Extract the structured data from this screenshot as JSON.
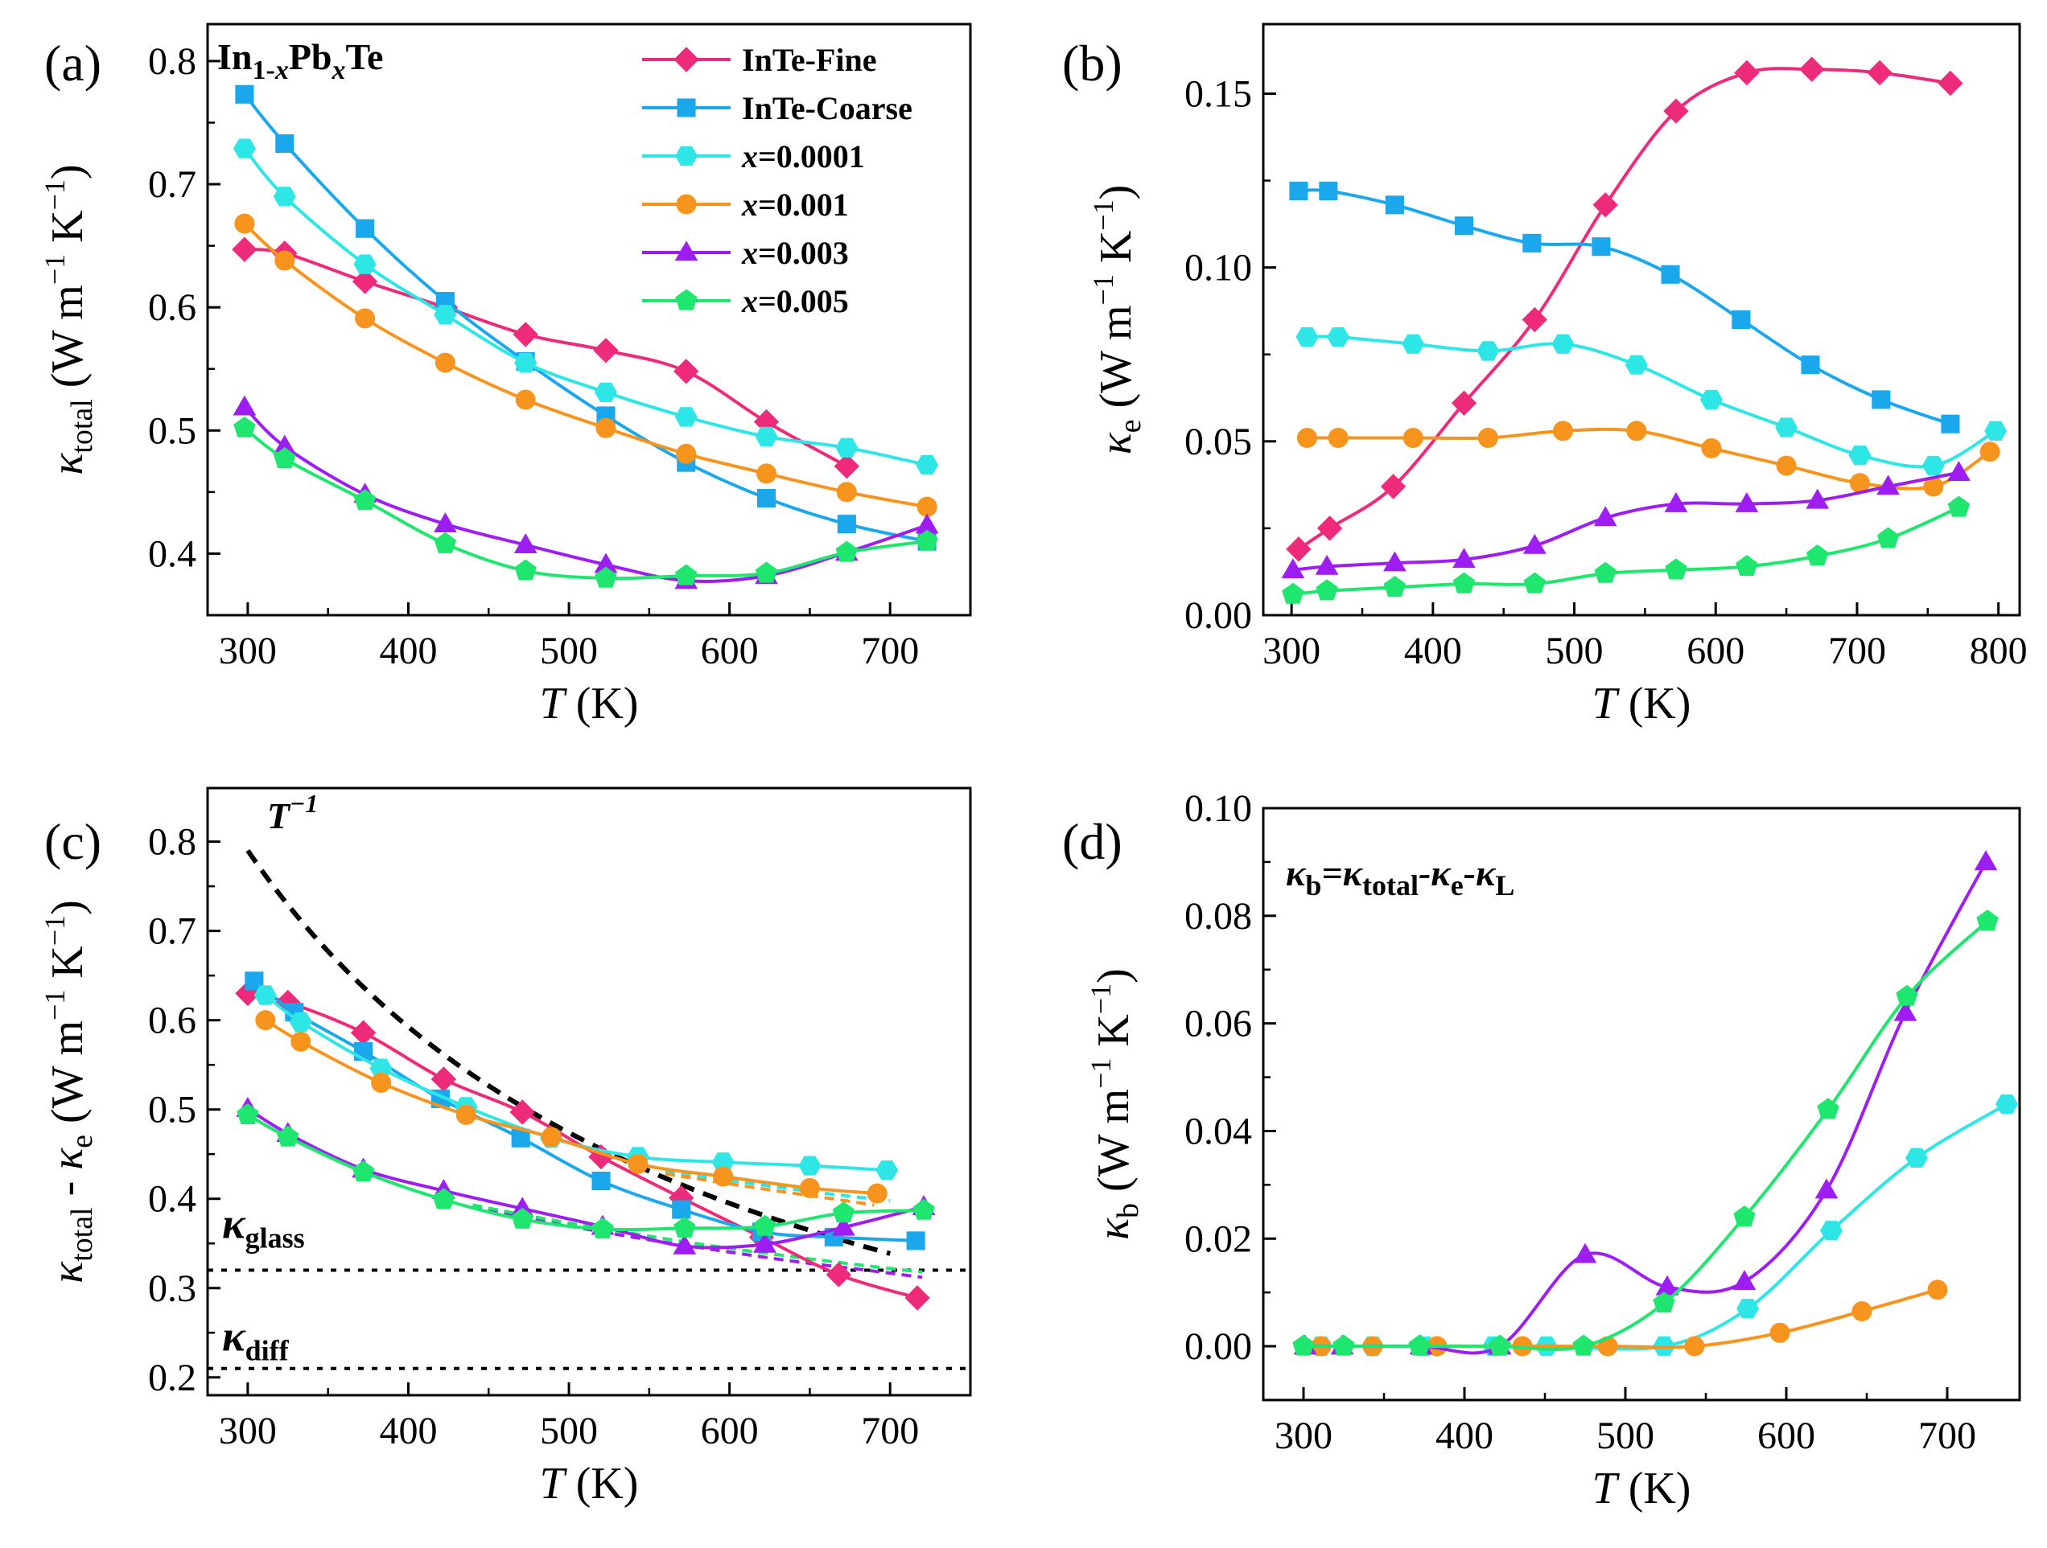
{
  "colors": {
    "InTe-Fine": "#ee2a7b",
    "InTe-Coarse": "#1aa7ec",
    "x=0.0001": "#2ee6e6",
    "x=0.001": "#f7941d",
    "x=0.003": "#9d1df2",
    "x=0.005": "#1ee66e"
  },
  "markers": {
    "InTe-Fine": "diamond",
    "InTe-Coarse": "square",
    "x=0.0001": "hexagon",
    "x=0.001": "circle",
    "x=0.003": "triangle",
    "x=0.005": "pentagon"
  },
  "chart_data": [
    {
      "type": "line",
      "panel_label": "(a)",
      "title_main": "In",
      "title_sub1": "1-",
      "title_subx1": "x",
      "title_mid": "Pb",
      "title_subx2": "x",
      "title_end": "Te",
      "xlabel_main": "T",
      "xlabel_unit": " (K)",
      "ylabel_main": "κ",
      "ylabel_sub": "total",
      "ylabel_unit": " (W m",
      "ylabel_exp1": "−1",
      "ylabel_unit2": " K",
      "ylabel_exp2": "−1",
      "ylabel_close": ")",
      "xlim": [
        275,
        750
      ],
      "ylim": [
        0.35,
        0.83
      ],
      "xticks": [
        "300",
        "400",
        "500",
        "600",
        "700"
      ],
      "xtick_values": [
        300,
        400,
        500,
        600,
        700
      ],
      "yticks": [
        "0.4",
        "0.5",
        "0.6",
        "0.7",
        "0.8"
      ],
      "ytick_values": [
        0.4,
        0.5,
        0.6,
        0.7,
        0.8
      ],
      "legend": {
        "placement": "top-right",
        "entries": [
          {
            "key": "InTe-Fine",
            "text": "InTe-Fine",
            "italic_prefix": ""
          },
          {
            "key": "InTe-Coarse",
            "text": "InTe-Coarse",
            "italic_prefix": ""
          },
          {
            "key": "x=0.0001",
            "text": "=0.0001",
            "italic_prefix": "x"
          },
          {
            "key": "x=0.001",
            "text": "=0.001",
            "italic_prefix": "x"
          },
          {
            "key": "x=0.003",
            "text": "=0.003",
            "italic_prefix": "x"
          },
          {
            "key": "x=0.005",
            "text": "=0.005",
            "italic_prefix": "x"
          }
        ]
      },
      "series": [
        {
          "key": "InTe-Fine",
          "x": [
            298,
            323,
            373,
            423,
            473,
            523,
            573,
            623,
            673
          ],
          "y": [
            0.647,
            0.644,
            0.621,
            0.6,
            0.578,
            0.565,
            0.548,
            0.507,
            0.471
          ]
        },
        {
          "key": "InTe-Coarse",
          "x": [
            298,
            323,
            373,
            423,
            473,
            523,
            573,
            623,
            673,
            723
          ],
          "y": [
            0.773,
            0.733,
            0.664,
            0.605,
            0.556,
            0.512,
            0.474,
            0.445,
            0.424,
            0.41
          ]
        },
        {
          "key": "x=0.0001",
          "x": [
            298,
            323,
            373,
            423,
            473,
            523,
            573,
            623,
            673,
            723
          ],
          "y": [
            0.729,
            0.69,
            0.635,
            0.594,
            0.555,
            0.531,
            0.511,
            0.495,
            0.486,
            0.472
          ]
        },
        {
          "key": "x=0.001",
          "x": [
            298,
            323,
            373,
            423,
            473,
            523,
            573,
            623,
            673,
            723
          ],
          "y": [
            0.668,
            0.638,
            0.591,
            0.555,
            0.525,
            0.502,
            0.481,
            0.465,
            0.45,
            0.438
          ]
        },
        {
          "key": "x=0.003",
          "x": [
            298,
            323,
            373,
            423,
            473,
            523,
            573,
            623,
            673,
            723
          ],
          "y": [
            0.519,
            0.487,
            0.448,
            0.424,
            0.407,
            0.391,
            0.378,
            0.382,
            0.401,
            0.423
          ]
        },
        {
          "key": "x=0.005",
          "x": [
            298,
            323,
            373,
            423,
            473,
            523,
            573,
            623,
            673,
            723
          ],
          "y": [
            0.502,
            0.477,
            0.443,
            0.408,
            0.386,
            0.38,
            0.382,
            0.384,
            0.401,
            0.41
          ]
        }
      ]
    },
    {
      "type": "line",
      "panel_label": "(b)",
      "xlabel_main": "T",
      "xlabel_unit": " (K)",
      "ylabel_main": "κ",
      "ylabel_sub": "e",
      "ylabel_unit": " (W m",
      "ylabel_exp1": "−1",
      "ylabel_unit2": " K",
      "ylabel_exp2": "−1",
      "ylabel_close": ")",
      "xlim": [
        280,
        815
      ],
      "ylim": [
        0.0,
        0.17
      ],
      "xticks": [
        "300",
        "400",
        "500",
        "600",
        "700",
        "800"
      ],
      "xtick_values": [
        300,
        400,
        500,
        600,
        700,
        800
      ],
      "yticks": [
        "0.00",
        "0.05",
        "0.10",
        "0.15"
      ],
      "ytick_values": [
        0.0,
        0.05,
        0.1,
        0.15
      ],
      "series": [
        {
          "key": "InTe-Fine",
          "x": [
            305,
            327,
            372,
            422,
            472,
            522,
            572,
            622,
            668,
            716,
            766
          ],
          "y": [
            0.019,
            0.025,
            0.037,
            0.061,
            0.085,
            0.118,
            0.145,
            0.156,
            0.157,
            0.156,
            0.153
          ]
        },
        {
          "key": "InTe-Coarse",
          "x": [
            305,
            326,
            373,
            422,
            470,
            519,
            568,
            618,
            667,
            717,
            766
          ],
          "y": [
            0.122,
            0.122,
            0.118,
            0.112,
            0.107,
            0.106,
            0.098,
            0.085,
            0.072,
            0.062,
            0.055
          ]
        },
        {
          "key": "x=0.0001",
          "x": [
            311,
            333,
            386,
            439,
            492,
            544,
            597,
            650,
            702,
            754,
            798
          ],
          "y": [
            0.08,
            0.08,
            0.078,
            0.076,
            0.078,
            0.072,
            0.062,
            0.054,
            0.046,
            0.043,
            0.053
          ]
        },
        {
          "key": "x=0.001",
          "x": [
            311,
            333,
            386,
            439,
            492,
            544,
            597,
            650,
            702,
            754,
            794
          ],
          "y": [
            0.051,
            0.051,
            0.051,
            0.051,
            0.053,
            0.053,
            0.048,
            0.043,
            0.038,
            0.037,
            0.047
          ]
        },
        {
          "key": "x=0.003",
          "x": [
            301,
            325,
            373,
            422,
            472,
            522,
            572,
            622,
            672,
            722,
            772
          ],
          "y": [
            0.013,
            0.014,
            0.015,
            0.016,
            0.02,
            0.028,
            0.032,
            0.032,
            0.033,
            0.037,
            0.041
          ]
        },
        {
          "key": "x=0.005",
          "x": [
            301,
            325,
            373,
            422,
            472,
            522,
            572,
            622,
            672,
            722,
            772
          ],
          "y": [
            0.006,
            0.007,
            0.008,
            0.009,
            0.009,
            0.012,
            0.013,
            0.014,
            0.017,
            0.022,
            0.031
          ]
        }
      ]
    },
    {
      "type": "line",
      "panel_label": "(c)",
      "xlabel_main": "T",
      "xlabel_unit": " (K)",
      "ylabel_main": "κ",
      "ylabel_sub": "total",
      "ylabel_mid": " - κ",
      "ylabel_sub2": "e",
      "ylabel_unit": " (W m",
      "ylabel_exp1": "−1",
      "ylabel_unit2": " K",
      "ylabel_exp2": "−1",
      "ylabel_close": ")",
      "xlim": [
        275,
        750
      ],
      "ylim": [
        0.18,
        0.86
      ],
      "xticks": [
        "300",
        "400",
        "500",
        "600",
        "700"
      ],
      "xtick_values": [
        300,
        400,
        500,
        600,
        700
      ],
      "yticks": [
        "0.2",
        "0.3",
        "0.4",
        "0.5",
        "0.6",
        "0.7",
        "0.8"
      ],
      "ytick_values": [
        0.2,
        0.3,
        0.4,
        0.5,
        0.6,
        0.7,
        0.8
      ],
      "annotations": {
        "T_inverse": {
          "text": "T",
          "exp": "−1",
          "x": [
            300,
            700
          ],
          "y": [
            0.79,
            0.338
          ]
        },
        "kappa_glass": {
          "main": "κ",
          "sub": "glass",
          "value": 0.32
        },
        "kappa_diff": {
          "main": "κ",
          "sub": "diff",
          "value": 0.21
        }
      },
      "series": [
        {
          "key": "InTe-Fine",
          "x": [
            300,
            325,
            372,
            422,
            471,
            520,
            570,
            620,
            668,
            717
          ],
          "y": [
            0.63,
            0.62,
            0.586,
            0.534,
            0.497,
            0.447,
            0.401,
            0.357,
            0.315,
            0.289
          ]
        },
        {
          "key": "InTe-Coarse",
          "x": [
            304,
            329,
            372,
            420,
            470,
            520,
            570,
            620,
            665,
            716
          ],
          "y": [
            0.644,
            0.609,
            0.565,
            0.512,
            0.468,
            0.42,
            0.388,
            0.363,
            0.357,
            0.353
          ]
        },
        {
          "key": "x=0.0001",
          "x": [
            311,
            333,
            383,
            436,
            489,
            543,
            596,
            650,
            698
          ],
          "y": [
            0.628,
            0.598,
            0.546,
            0.503,
            0.468,
            0.447,
            0.441,
            0.437,
            0.432
          ]
        },
        {
          "key": "x=0.001",
          "x": [
            311,
            333,
            383,
            436,
            489,
            543,
            596,
            650,
            692
          ],
          "y": [
            0.6,
            0.576,
            0.53,
            0.494,
            0.469,
            0.439,
            0.425,
            0.412,
            0.406
          ]
        },
        {
          "key": "x=0.003",
          "x": [
            300,
            325,
            372,
            422,
            471,
            521,
            572,
            622,
            671,
            721
          ],
          "y": [
            0.501,
            0.473,
            0.433,
            0.409,
            0.389,
            0.369,
            0.347,
            0.349,
            0.368,
            0.391
          ]
        },
        {
          "key": "x=0.005",
          "x": [
            300,
            325,
            372,
            422,
            471,
            521,
            572,
            622,
            671,
            721
          ],
          "y": [
            0.494,
            0.469,
            0.43,
            0.399,
            0.377,
            0.366,
            0.367,
            0.369,
            0.384,
            0.387
          ]
        }
      ],
      "dashed_fits": [
        {
          "key": "x=0.0001",
          "x": [
            560,
            610,
            660,
            700
          ],
          "y": [
            0.43,
            0.418,
            0.406,
            0.398
          ]
        },
        {
          "key": "x=0.001",
          "x": [
            560,
            610,
            660,
            690
          ],
          "y": [
            0.428,
            0.414,
            0.401,
            0.393
          ]
        },
        {
          "key": "x=0.003",
          "x": [
            440,
            490,
            540,
            590,
            640,
            690,
            720
          ],
          "y": [
            0.391,
            0.373,
            0.357,
            0.343,
            0.33,
            0.319,
            0.312
          ]
        },
        {
          "key": "x=0.005",
          "x": [
            440,
            490,
            540,
            590,
            640,
            690,
            720
          ],
          "y": [
            0.393,
            0.376,
            0.361,
            0.347,
            0.335,
            0.324,
            0.318
          ]
        }
      ]
    },
    {
      "type": "line",
      "panel_label": "(d)",
      "equation": {
        "parts": [
          {
            "text": "κ",
            "style": "main"
          },
          {
            "text": "b",
            "style": "sub"
          },
          {
            "text": "=κ",
            "style": "main"
          },
          {
            "text": "total",
            "style": "sub"
          },
          {
            "text": "-κ",
            "style": "main"
          },
          {
            "text": "e",
            "style": "sub"
          },
          {
            "text": "-κ",
            "style": "main"
          },
          {
            "text": "L",
            "style": "sub"
          }
        ]
      },
      "xlabel_main": "T",
      "xlabel_unit": " (K)",
      "ylabel_main": "κ",
      "ylabel_sub": "b",
      "ylabel_unit": " (W m",
      "ylabel_exp1": "−1",
      "ylabel_unit2": " K",
      "ylabel_exp2": "−1",
      "ylabel_close": ")",
      "xlim": [
        275,
        745
      ],
      "ylim": [
        -0.01,
        0.1
      ],
      "xticks": [
        "300",
        "400",
        "500",
        "600",
        "700"
      ],
      "xtick_values": [
        300,
        400,
        500,
        600,
        700
      ],
      "yticks": [
        "0.00",
        "0.02",
        "0.04",
        "0.06",
        "0.08",
        "0.10"
      ],
      "ytick_values": [
        0.0,
        0.02,
        0.04,
        0.06,
        0.08,
        0.1
      ],
      "series": [
        {
          "key": "x=0.0001",
          "x": [
            311,
            343,
            375,
            418,
            451,
            524,
            576,
            628,
            681,
            737
          ],
          "y": [
            0.0,
            0.0,
            0.0,
            0.0,
            0.0,
            0.0,
            0.007,
            0.0215,
            0.035,
            0.045
          ]
        },
        {
          "key": "x=0.001",
          "x": [
            311,
            343,
            383,
            436,
            489,
            543,
            596,
            647,
            694
          ],
          "y": [
            0.0,
            0.0,
            0.0,
            0.0,
            0.0,
            0.0,
            0.0025,
            0.0065,
            0.0105
          ]
        },
        {
          "key": "x=0.003",
          "x": [
            301,
            324,
            373,
            422,
            475,
            526,
            574,
            625,
            674,
            724
          ],
          "y": [
            0.0,
            0.0,
            0.0,
            0.0,
            0.017,
            0.011,
            0.012,
            0.029,
            0.062,
            0.09
          ]
        },
        {
          "key": "x=0.005",
          "x": [
            300,
            325,
            372,
            422,
            474,
            524,
            574,
            626,
            675,
            725
          ],
          "y": [
            0.0,
            0.0,
            0.0,
            0.0,
            0.0,
            0.008,
            0.024,
            0.044,
            0.065,
            0.079
          ]
        }
      ]
    }
  ]
}
